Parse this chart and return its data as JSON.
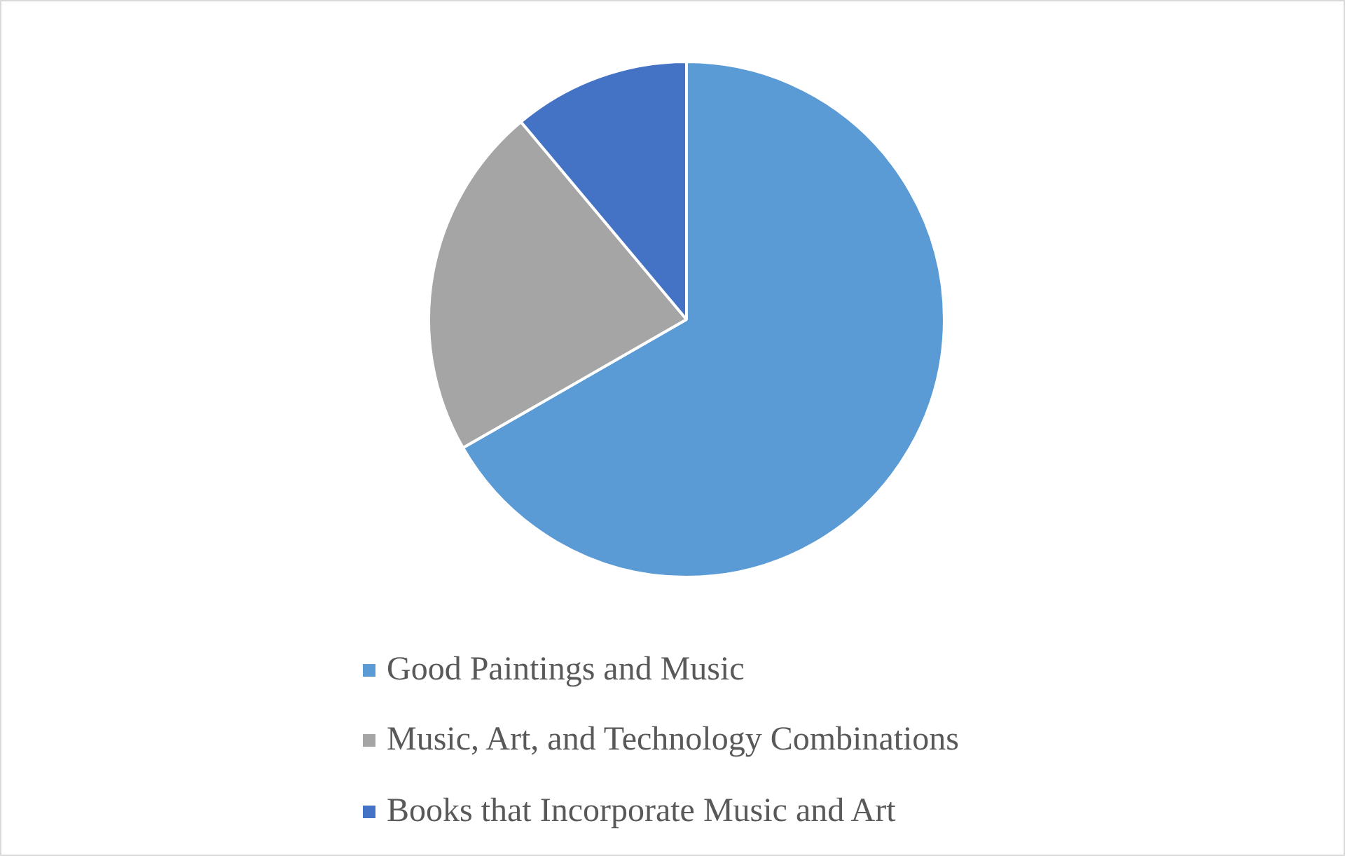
{
  "chart_data": {
    "type": "pie",
    "categories": [
      "Good Paintings and Music",
      "Music, Art, and Technology Combinations",
      "Books that Incorporate Music and Art"
    ],
    "values": [
      66.7,
      22.2,
      11.1
    ],
    "colors": [
      "#5b9bd5",
      "#a5a5a5",
      "#4472c4"
    ],
    "legend": "bottom"
  }
}
